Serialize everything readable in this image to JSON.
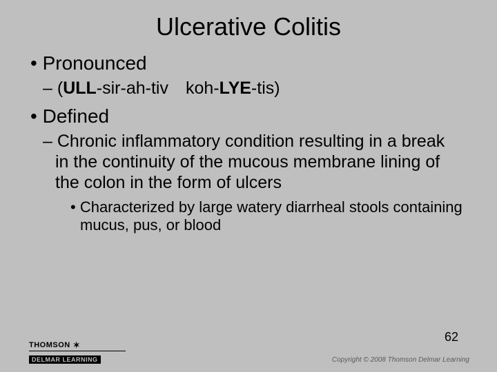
{
  "title": "Ulcerative Colitis",
  "bullets": {
    "pronounced": {
      "label": "Pronounced",
      "pron_pre": "(",
      "pron_b1": "ULL",
      "pron_mid": "-sir-ah-tiv koh-",
      "pron_b2": "LYE",
      "pron_post": "-tis)"
    },
    "defined": {
      "label": "Defined",
      "body": "Chronic inflammatory condition resulting in a break in the continuity of the mucous membrane lining of the colon in the form of ulcers",
      "sub": "Characterized by large watery diarrheal stools containing mucus, pus, or blood"
    }
  },
  "footer": {
    "brand_top": "THOMSON",
    "brand_bottom": "DELMAR LEARNING",
    "page": "62",
    "copyright": "Copyright © 2008 Thomson Delmar Learning"
  },
  "colors": {
    "background": "#bfbfbf",
    "text": "#000000",
    "copyright": "#5a5a5a"
  }
}
